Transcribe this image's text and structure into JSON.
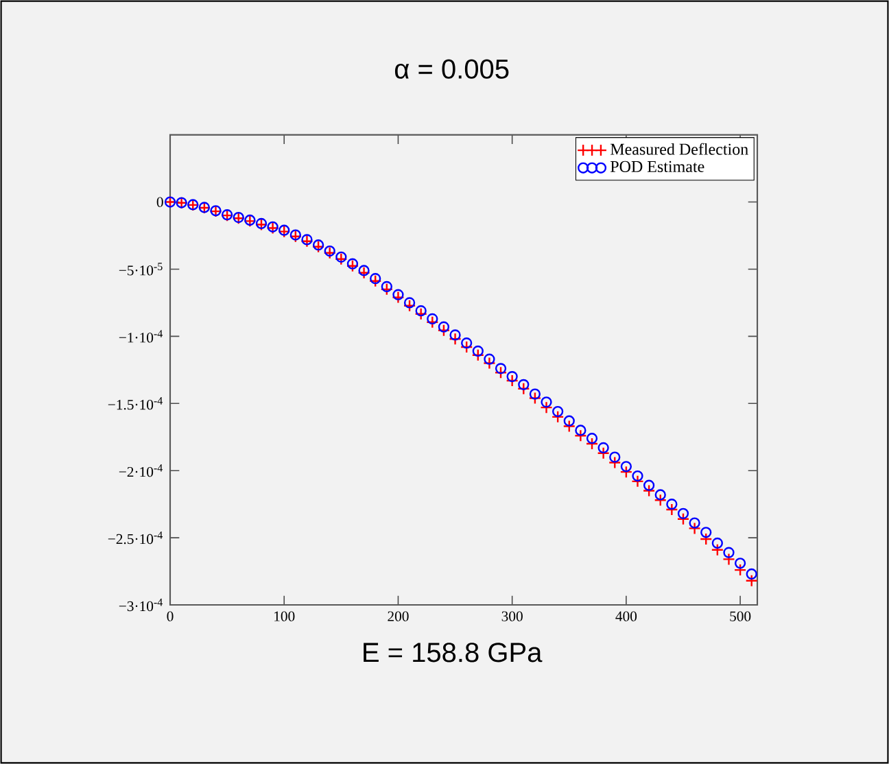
{
  "chart_data": {
    "type": "scatter",
    "title": "α = 0.005",
    "annotations": [
      "E = 158.8 GPa"
    ],
    "x": [
      0,
      10,
      20,
      30,
      40,
      50,
      60,
      70,
      80,
      90,
      100,
      110,
      120,
      130,
      140,
      150,
      160,
      170,
      180,
      190,
      200,
      210,
      220,
      230,
      240,
      250,
      260,
      270,
      280,
      290,
      300,
      310,
      320,
      330,
      340,
      350,
      360,
      370,
      380,
      390,
      400,
      410,
      420,
      430,
      440,
      450,
      460,
      470,
      480,
      490,
      500,
      510
    ],
    "series": [
      {
        "name": "Measured Deflection",
        "color": "#ff0000",
        "marker": "cross",
        "values": [
          0,
          -6e-07,
          -2.2e-06,
          -4.3e-06,
          -6.9e-06,
          -1e-05,
          -1.21e-05,
          -1.42e-05,
          -1.68e-05,
          -1.94e-05,
          -2.2e-05,
          -2.56e-05,
          -2.92e-05,
          -3.33e-05,
          -3.79e-05,
          -4.25e-05,
          -4.76e-05,
          -5.27e-05,
          -5.88e-05,
          -6.5e-05,
          -7.1e-05,
          -7.72e-05,
          -8.33e-05,
          -8.95e-05,
          -9.56e-05,
          -0.000102,
          -0.000108,
          -0.000114,
          -0.00012,
          -0.000127,
          -0.000133,
          -0.000139,
          -0.000146,
          -0.000153,
          -0.00016,
          -0.000167,
          -0.000174,
          -0.00018,
          -0.000187,
          -0.000194,
          -0.000201,
          -0.000208,
          -0.000215,
          -0.000222,
          -0.000229,
          -0.000236,
          -0.000243,
          -0.000251,
          -0.000259,
          -0.000266,
          -0.000274,
          -0.000282
        ]
      },
      {
        "name": "POD Estimate",
        "color": "#0000ff",
        "marker": "circle",
        "values": [
          0,
          -5e-07,
          -2e-06,
          -4e-06,
          -6.5e-06,
          -9.5e-06,
          -1.15e-05,
          -1.35e-05,
          -1.6e-05,
          -1.85e-05,
          -2.1e-05,
          -2.45e-05,
          -2.8e-05,
          -3.2e-05,
          -3.65e-05,
          -4.1e-05,
          -4.6e-05,
          -5.1e-05,
          -5.7e-05,
          -6.3e-05,
          -6.9e-05,
          -7.5e-05,
          -8.1e-05,
          -8.7e-05,
          -9.3e-05,
          -9.9e-05,
          -0.000105,
          -0.000111,
          -0.000117,
          -0.000124,
          -0.00013,
          -0.000136,
          -0.000143,
          -0.000149,
          -0.000156,
          -0.000163,
          -0.00017,
          -0.000176,
          -0.000183,
          -0.00019,
          -0.000197,
          -0.000204,
          -0.000211,
          -0.000218,
          -0.000225,
          -0.000232,
          -0.000239,
          -0.000246,
          -0.000254,
          -0.000261,
          -0.000269,
          -0.000277
        ]
      }
    ],
    "xlim": [
      0,
      515
    ],
    "ylim": [
      -0.0003,
      5e-05
    ],
    "xticks": [
      0,
      100,
      200,
      300,
      400,
      500
    ],
    "yticks": [
      {
        "value": 0,
        "label": "0"
      },
      {
        "value": -5e-05,
        "label": "−5·10$^{-5}$"
      },
      {
        "value": -0.0001,
        "label": "−1·10$^{-4}$"
      },
      {
        "value": -0.00015,
        "label": "−1.5·10$^{-4}$"
      },
      {
        "value": -0.0002,
        "label": "−2·10$^{-4}$"
      },
      {
        "value": -0.00025,
        "label": "−2.5·10$^{-4}$"
      },
      {
        "value": -0.0003,
        "label": "−3·10$^{-4}$"
      }
    ],
    "grid": false,
    "legend": "top right"
  }
}
